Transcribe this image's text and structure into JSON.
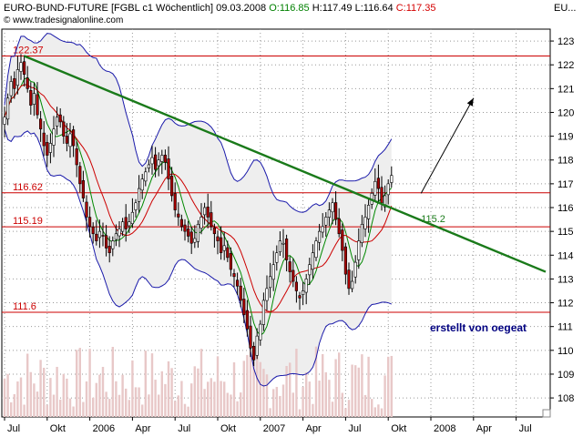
{
  "header": {
    "instrument": "EURO-BUND-FUTURE [FGBL c1  Wöchentlich] 09.03.2008",
    "open_label": "O:",
    "open": "116.85",
    "high_label": "H:",
    "high": "117.49",
    "low_label": "L:",
    "low": "116.64",
    "close_label": "C:",
    "close": "117.35",
    "source": "© www.tradesignalonline.com",
    "symbol_tag": "EU..."
  },
  "colors": {
    "up_candle": "#ffffff",
    "down_candle": "#aa0000",
    "level_line": "#cc0000",
    "trend_line": "#1a7a1a",
    "bollinger": "#1a1aaa",
    "ma_fast": "#008800",
    "ma_slow": "#cc0000",
    "band_fill": "#eeeeee",
    "volume": "#e8c8c8",
    "annotation": "#000080"
  },
  "chart_data": {
    "type": "candlestick",
    "title": "EURO-BUND-FUTURE [FGBL c1  Wöchentlich] 09.03.2008",
    "ylim": [
      107.2,
      123.5
    ],
    "y_ticks": [
      "108",
      "109",
      "110",
      "111",
      "112",
      "113",
      "114",
      "115",
      "116",
      "117",
      "118",
      "119",
      "120",
      "121",
      "122",
      "123"
    ],
    "x_ticks": [
      "Jul",
      "Okt",
      "2006",
      "Apr",
      "Jul",
      "Okt",
      "2007",
      "Apr",
      "Jul",
      "Okt",
      "2008",
      "Apr",
      "Jul"
    ],
    "x_tick_index": [
      0,
      13,
      26,
      39,
      52,
      65,
      78,
      91,
      104,
      117,
      130,
      143,
      156
    ],
    "levels": [
      {
        "label": "122.37",
        "value": 122.37
      },
      {
        "label": "116.62",
        "value": 116.62
      },
      {
        "label": "115.19",
        "value": 115.19
      },
      {
        "label": "111.6",
        "value": 111.6
      }
    ],
    "level_115_2_label": "115.2",
    "trend_line": {
      "from": [
        6,
        122.37
      ],
      "to": [
        165,
        113.3
      ]
    },
    "arrow": {
      "from": [
        127,
        116.6
      ],
      "to": [
        143,
        120.6
      ]
    },
    "annotation": "erstellt von oegeat",
    "closes": [
      119.8,
      120.6,
      121.3,
      121.0,
      121.8,
      122.1,
      121.6,
      121.0,
      120.3,
      120.8,
      119.9,
      119.3,
      118.6,
      118.2,
      118.7,
      119.3,
      119.8,
      119.6,
      119.0,
      118.7,
      119.1,
      118.6,
      117.8,
      117.0,
      116.4,
      115.6,
      115.2,
      114.9,
      114.6,
      115.0,
      114.8,
      114.3,
      114.1,
      114.6,
      114.9,
      115.1,
      115.4,
      115.1,
      115.4,
      115.8,
      116.2,
      116.8,
      117.2,
      117.5,
      117.8,
      118.1,
      117.6,
      118.0,
      118.2,
      117.9,
      117.2,
      116.5,
      115.9,
      115.6,
      115.2,
      115.0,
      114.8,
      114.5,
      114.7,
      115.3,
      115.6,
      116.0,
      115.6,
      115.2,
      114.9,
      114.6,
      114.1,
      114.4,
      113.9,
      113.4,
      113.1,
      112.7,
      112.1,
      111.5,
      110.9,
      110.1,
      109.6,
      110.6,
      111.1,
      112.1,
      112.6,
      113.1,
      113.6,
      114.1,
      114.6,
      114.5,
      113.8,
      113.3,
      112.9,
      112.5,
      112.2,
      112.5,
      113.0,
      113.6,
      114.1,
      114.6,
      115.0,
      115.2,
      115.6,
      115.9,
      116.2,
      115.5,
      114.9,
      114.2,
      113.2,
      112.6,
      112.9,
      113.7,
      114.6,
      115.3,
      115.6,
      116.1,
      116.6,
      117.1,
      116.8,
      116.2,
      116.5,
      117.0,
      117.35
    ],
    "bar_dates_first": "Jun 2005",
    "bar_interval": "weekly"
  }
}
